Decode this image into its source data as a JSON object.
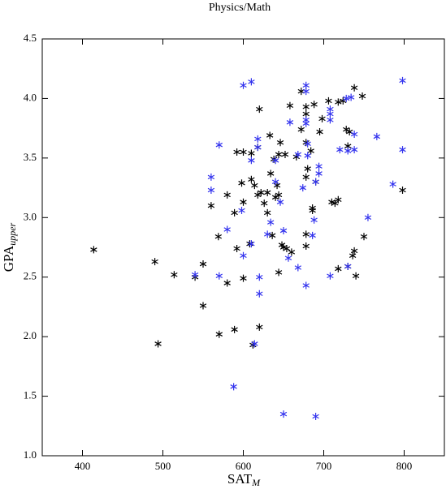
{
  "chart_data": {
    "type": "scatter",
    "title": "Physics/Math",
    "xlabel": "SAT",
    "xlabel_sub": "M",
    "ylabel": "GPA",
    "ylabel_sub": "upper",
    "xlim": [
      350,
      850
    ],
    "xticks": [
      400,
      500,
      600,
      700,
      800
    ],
    "ylim": [
      1.0,
      4.5
    ],
    "yticks": [
      {
        "value": 1.0,
        "label": "1.0"
      },
      1.5,
      {
        "value": 2.0,
        "label": "2.0"
      },
      2.5,
      {
        "value": 3.0,
        "label": "3.0"
      },
      3.5,
      {
        "value": 4.0,
        "label": "4.0"
      },
      4.5
    ],
    "series": [
      {
        "color": "#000000",
        "x": [
          414,
          490,
          494,
          514,
          540,
          550,
          550,
          570,
          569,
          580,
          580,
          589,
          589,
          592,
          592,
          560,
          598,
          600,
          600,
          600,
          608,
          610,
          610,
          612,
          614,
          618,
          618,
          620,
          620,
          622,
          626,
          630,
          630,
          633,
          634,
          636,
          638,
          640,
          642,
          644,
          644,
          646,
          644,
          648,
          650,
          652,
          654,
          660,
          658,
          666,
          672,
          672,
          678,
          678,
          678,
          678,
          678,
          678,
          680,
          684,
          686,
          686,
          688,
          690,
          695,
          698,
          706,
          710,
          714,
          718,
          718,
          718,
          724,
          728,
          730,
          732,
          730,
          736,
          738,
          738,
          740,
          748,
          750,
          798
        ],
        "values": [
          2.73,
          2.63,
          1.94,
          2.52,
          2.5,
          2.61,
          2.26,
          2.02,
          2.84,
          3.19,
          2.45,
          3.04,
          2.06,
          3.55,
          2.74,
          3.1,
          3.29,
          3.13,
          3.55,
          2.49,
          2.78,
          3.54,
          3.32,
          1.93,
          3.27,
          3.59,
          3.19,
          2.08,
          3.91,
          3.21,
          3.12,
          3.21,
          3.04,
          3.69,
          3.37,
          2.85,
          3.49,
          3.17,
          3.27,
          3.53,
          3.19,
          3.63,
          2.54,
          2.77,
          2.75,
          3.53,
          2.74,
          2.71,
          3.94,
          3.51,
          4.06,
          3.74,
          3.93,
          3.87,
          3.63,
          3.34,
          2.86,
          2.76,
          3.41,
          3.56,
          3.08,
          3.06,
          3.95,
          3.3,
          3.72,
          3.83,
          3.98,
          3.13,
          3.12,
          3.97,
          3.15,
          2.57,
          3.98,
          3.74,
          2.59,
          3.72,
          3.6,
          2.68,
          4.09,
          2.72,
          2.51,
          4.02,
          2.84,
          3.23
        ]
      },
      {
        "color": "#3333ee",
        "x": [
          540,
          560,
          560,
          570,
          570,
          580,
          588,
          598,
          600,
          600,
          610,
          610,
          610,
          614,
          618,
          618,
          620,
          620,
          630,
          634,
          640,
          640,
          646,
          650,
          650,
          656,
          658,
          668,
          668,
          674,
          678,
          678,
          678,
          678,
          678,
          680,
          680,
          686,
          688,
          690,
          690,
          694,
          694,
          708,
          708,
          708,
          708,
          720,
          728,
          730,
          730,
          734,
          738,
          738,
          755,
          766,
          786,
          798,
          798
        ],
        "values": [
          2.52,
          3.34,
          3.23,
          3.61,
          2.51,
          2.9,
          1.58,
          3.06,
          4.11,
          2.68,
          4.14,
          3.48,
          2.78,
          1.94,
          3.66,
          3.59,
          2.5,
          2.36,
          2.86,
          2.96,
          3.48,
          3.3,
          3.13,
          2.89,
          1.35,
          2.66,
          3.8,
          3.53,
          2.58,
          3.25,
          4.11,
          4.06,
          3.82,
          3.79,
          2.43,
          3.62,
          3.52,
          2.85,
          2.98,
          3.3,
          1.33,
          3.43,
          3.37,
          3.91,
          3.87,
          3.82,
          2.51,
          3.57,
          4.0,
          3.56,
          2.59,
          4.01,
          3.7,
          3.57,
          3.0,
          3.68,
          3.28,
          4.15,
          3.57
        ]
      }
    ]
  }
}
